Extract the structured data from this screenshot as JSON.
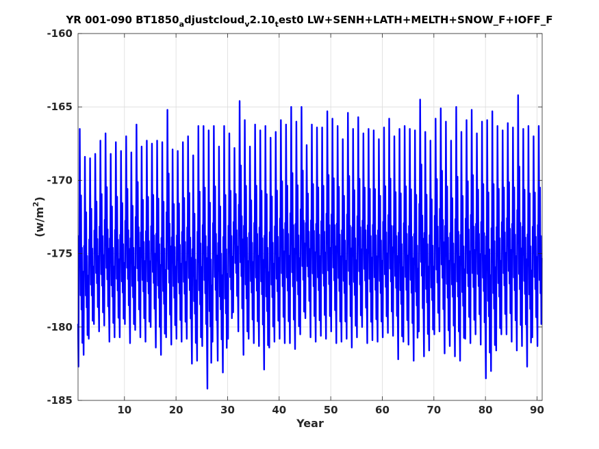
{
  "chart_data": {
    "type": "line",
    "title_parts": {
      "p1": "YR 001-090 BT1850",
      "s1": "a",
      "p2": "djustcloud",
      "s2": "v",
      "p3": "2.10",
      "s3": "t",
      "p4": "est0 LW+SENH+LATH+MELTH+SNOW_F+IOFF_F"
    },
    "xlabel": "Year",
    "ylabel_parts": {
      "base": "(w/m",
      "sup": "2",
      "close": ")"
    },
    "xlim": [
      1,
      91
    ],
    "ylim": [
      -185,
      -160
    ],
    "xticks": [
      10,
      20,
      30,
      40,
      50,
      60,
      70,
      80,
      90
    ],
    "yticks": [
      -185,
      -180,
      -175,
      -170,
      -165,
      -160
    ],
    "grid": true,
    "series": [
      {
        "color": "#0000ff",
        "resolution": "monthly",
        "annual_max": [
          -166.5,
          -168.4,
          -168.5,
          -168.2,
          -167.3,
          -166.8,
          -168.2,
          -167.4,
          -168.0,
          -167.0,
          -168.1,
          -166.2,
          -167.7,
          -167.3,
          -167.5,
          -167.3,
          -167.4,
          -165.2,
          -167.9,
          -168.0,
          -167.4,
          -167.0,
          -168.3,
          -166.3,
          -166.3,
          -166.6,
          -166.3,
          -167.7,
          -166.3,
          -166.8,
          -167.8,
          -164.6,
          -165.9,
          -167.7,
          -166.2,
          -166.6,
          -166.3,
          -167.1,
          -166.7,
          -165.9,
          -166.2,
          -165.0,
          -166.0,
          -165.0,
          -167.6,
          -166.2,
          -166.4,
          -166.4,
          -165.3,
          -165.8,
          -166.3,
          -167.2,
          -165.4,
          -166.5,
          -165.7,
          -166.8,
          -166.5,
          -166.6,
          -167.2,
          -166.4,
          -165.8,
          -167.0,
          -166.5,
          -166.3,
          -166.5,
          -166.6,
          -164.5,
          -166.7,
          -167.3,
          -165.8,
          -165.1,
          -166.0,
          -167.3,
          -165.0,
          -166.7,
          -165.9,
          -165.2,
          -166.8,
          -166.0,
          -165.9,
          -165.3,
          -166.3,
          -166.6,
          -166.1,
          -166.4,
          -164.2,
          -166.5,
          -166.3,
          -167.0,
          -166.3
        ],
        "annual_min": [
          -182.7,
          -181.9,
          -180.8,
          -179.8,
          -180.3,
          -179.9,
          -181.0,
          -180.7,
          -180.7,
          -179.8,
          -181.1,
          -180.2,
          -180.7,
          -181.0,
          -180.0,
          -181.4,
          -181.9,
          -180.7,
          -181.2,
          -180.8,
          -181.0,
          -180.8,
          -182.5,
          -182.3,
          -181.3,
          -184.2,
          -181.0,
          -182.3,
          -183.1,
          -180.8,
          -179.0,
          -180.3,
          -181.9,
          -180.8,
          -181.1,
          -181.3,
          -182.9,
          -181.4,
          -181.0,
          -180.8,
          -181.1,
          -181.1,
          -181.5,
          -180.5,
          -179.4,
          -180.7,
          -181.0,
          -180.6,
          -180.8,
          -180.3,
          -181.1,
          -181.0,
          -180.8,
          -181.4,
          -180.7,
          -180.0,
          -181.1,
          -180.9,
          -181.0,
          -180.7,
          -180.4,
          -180.6,
          -182.2,
          -181.0,
          -181.2,
          -182.3,
          -180.3,
          -182.0,
          -181.6,
          -180.5,
          -180.3,
          -181.8,
          -181.3,
          -182.0,
          -182.3,
          -180.8,
          -181.1,
          -180.5,
          -181.2,
          -183.5,
          -183.0,
          -181.6,
          -180.5,
          -180.5,
          -181.0,
          -181.6,
          -181.3,
          -182.7,
          -180.7,
          -181.3
        ]
      }
    ]
  }
}
